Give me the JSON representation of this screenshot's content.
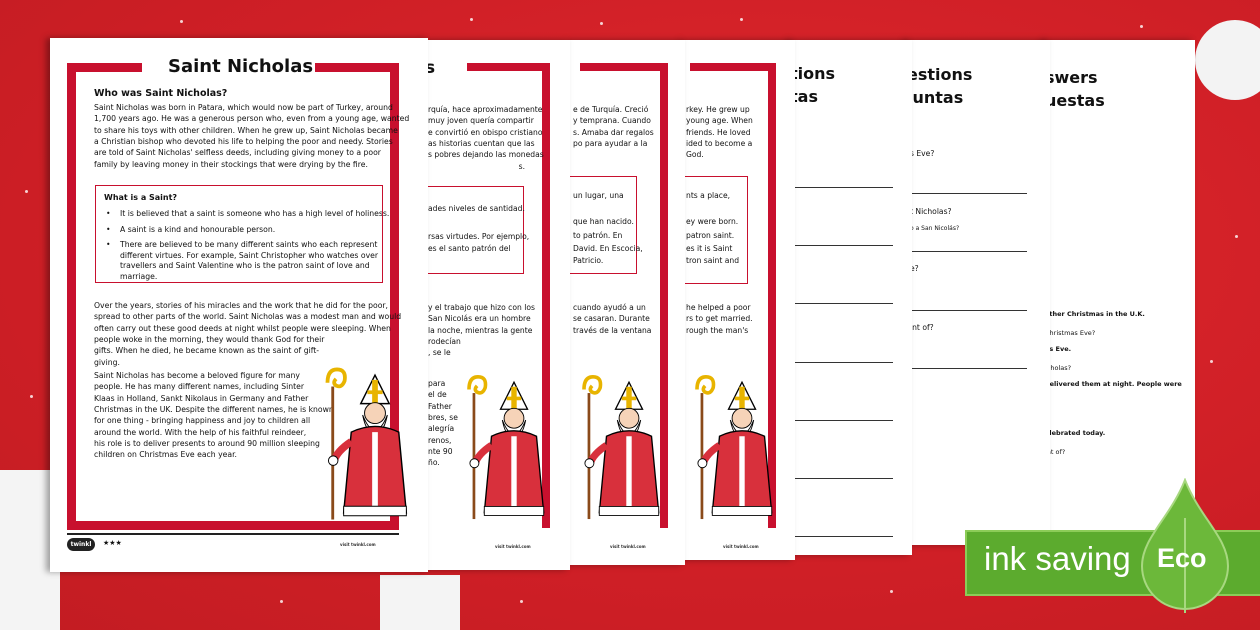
{
  "colors": {
    "background": "#d8232a",
    "frame": "#c8102e",
    "eco_green": "#5cab2e"
  },
  "page1": {
    "title": "Saint Nicholas",
    "heading": "Who was Saint Nicholas?",
    "intro": [
      "Saint Nicholas was born in Patara, which would now be part of Turkey, around",
      "1,700 years ago. He was a generous person who, even from a young age, wanted",
      "to share his toys with other children. When he grew up, Saint Nicholas became",
      "a Christian bishop who devoted his life to helping the poor and needy. Stories",
      "are told of Saint Nicholas' selfless deeds, including giving money to a poor",
      "family by leaving money in their stockings that were drying by the fire."
    ],
    "box_heading": "What is a Saint?",
    "box_items": [
      [
        "It is believed that a saint is someone who has a high level of holiness."
      ],
      [
        "A saint is a kind and honourable person."
      ],
      [
        "There are believed to be many different saints who each represent",
        "different virtues. For example, Saint Christopher who watches over",
        "travellers and Saint Valentine who is the patron saint of love and",
        "marriage."
      ]
    ],
    "para2": [
      "Over the years, stories of his miracles and the work that he did for the poor,",
      "spread to other parts of the world. Saint Nicholas was a modest man and would",
      "often carry out these good deeds at night whilst people were sleeping. When",
      "people woke in the morning, they would thank God for their",
      "gifts. When he died, he became known as the saint of gift-",
      "giving."
    ],
    "para3": [
      "Saint Nicholas has become a beloved figure for many",
      "people. He has many different names, including Sinter",
      "Klaas in Holland, Sankt Nikolaus in Germany and Father",
      "Christmas in the UK. Despite the different names, he is known",
      "for one thing - bringing happiness and joy to children all",
      "around the world. With the help of his faithful reindeer,",
      "his role is to deliver presents to around 90 million sleeping",
      "children on Christmas Eve each year."
    ],
    "logo": "twinkl",
    "stars": "★★★",
    "footer": "visit twinkl.com"
  },
  "page2": {
    "title": "s",
    "intro": [
      "rquía, hace aproximadamente",
      "muy joven quería compartir",
      "e convirtió en obispo cristiano",
      "as historias cuentan que las",
      "s pobres dejando las monedas",
      "s."
    ],
    "box": [
      "ades niveles de santidad.",
      "rsas virtudes. Por ejemplo,",
      "es el santo patrón del"
    ],
    "para2": [
      "y el trabajo que hizo con los",
      "San Nicolás era un hombre",
      "la noche, mientras la gente",
      "rodecían",
      ", se le"
    ],
    "para3": [
      "para",
      "el de",
      "Father",
      "bres, se",
      "alegría",
      "renos,",
      "nte 90",
      "ño."
    ],
    "footer": "visit twinkl.com"
  },
  "page3": {
    "intro": [
      "e de Turquía. Creció",
      "y temprana. Cuando",
      "s. Amaba dar regalos",
      "po para ayudar a la"
    ],
    "box": [
      "un lugar, una",
      "que han nacido.",
      "to patrón. En",
      "David. En Escocia,",
      "Patricio."
    ],
    "para2": [
      "cuando ayudó a un",
      "se casaran. Durante",
      "través de la ventana"
    ],
    "footer": "visit twinkl.com"
  },
  "page4": {
    "intro": [
      "rkey. He grew up",
      "young age. When",
      "friends. He loved",
      "ided to become a",
      "God."
    ],
    "box": [
      "nts a place,",
      "ey were born.",
      "patron saint.",
      "es it is Saint",
      "tron saint and"
    ],
    "para2": [
      "he helped a poor",
      "rs to get married.",
      "rough the man's"
    ],
    "footer": "visit twinkl.com"
  },
  "page5": {
    "title": [
      "tions",
      "tas"
    ]
  },
  "page6": {
    "title": [
      "estions",
      "juntas"
    ],
    "questions": [
      "s Eve?",
      "t Nicholas?",
      "o a San Nicolás?",
      "e?",
      "int of?"
    ]
  },
  "page7": {
    "title": [
      "swers",
      "uestas"
    ],
    "lines": [
      ".",
      "ather Christmas in the U.K.",
      "Christmas Eve?",
      "as Eve.",
      "icholas?",
      "delivered them at night. People were",
      "elebrated today.",
      "int of?"
    ]
  },
  "badge": {
    "text": "ink saving",
    "label": "Eco",
    "icon": "leaf-drop-icon"
  }
}
